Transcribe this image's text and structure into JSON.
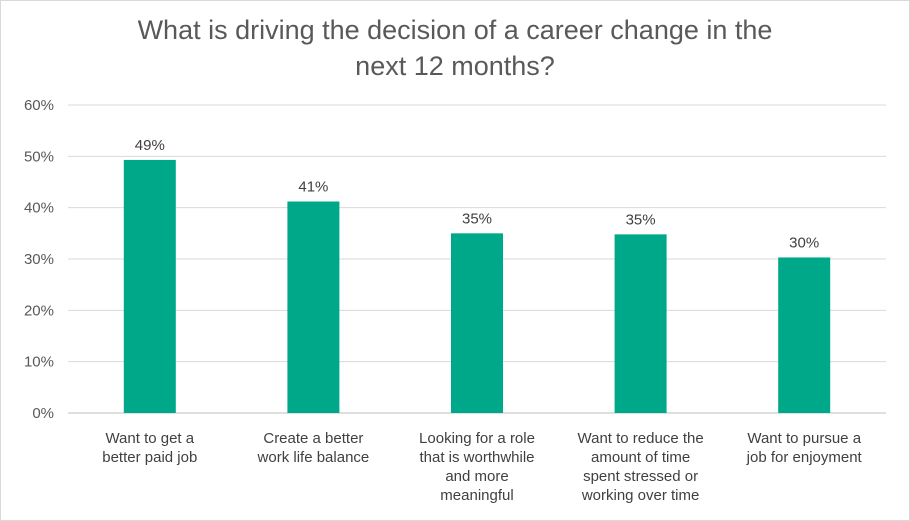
{
  "chart_data": {
    "type": "bar",
    "title_lines": [
      "What is driving the decision of a career change in the",
      "next 12 months?"
    ],
    "categories": [
      [
        "Want to get a",
        "better paid job"
      ],
      [
        "Create a better",
        "work life balance"
      ],
      [
        "Looking for a role",
        "that is worthwhile",
        "and more",
        "meaningful"
      ],
      [
        "Want to reduce the",
        "amount of time",
        "spent stressed or",
        "working over time"
      ],
      [
        "Want to pursue a",
        "job for enjoyment"
      ]
    ],
    "values": [
      49.3,
      41.2,
      35.0,
      34.8,
      30.3
    ],
    "data_labels": [
      "49%",
      "41%",
      "35%",
      "35%",
      "30%"
    ],
    "y_ticks": [
      0,
      10,
      20,
      30,
      40,
      50,
      60
    ],
    "y_tick_labels": [
      "0%",
      "10%",
      "20%",
      "30%",
      "40%",
      "50%",
      "60%"
    ],
    "ylim": [
      0,
      60
    ],
    "bar_color": "#00a88a",
    "grid": true
  }
}
